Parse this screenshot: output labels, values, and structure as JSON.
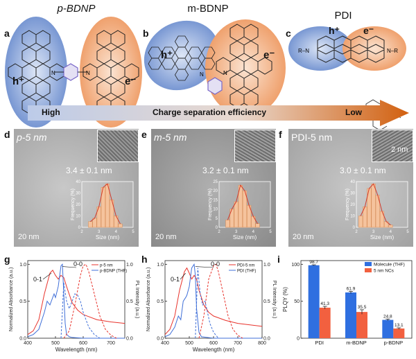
{
  "top": {
    "titles": {
      "a": "p-BDNP",
      "b": "m-BDNP",
      "c": "PDI"
    },
    "labels": {
      "a": "a",
      "b": "b",
      "c": "c"
    },
    "hole": "h⁺",
    "electron": "e⁻",
    "arrow": {
      "left": "High",
      "middle": "Charge separation efficiency",
      "right": "Low"
    },
    "r_group": "R="
  },
  "tem": [
    {
      "label": "d",
      "name": "p-5 nm",
      "size": "3.4 ± 0.1 nm",
      "scale": "20 nm",
      "hist": {
        "xlabel": "Size (nm)",
        "ylabel": "Frequency (%)",
        "xticks": [
          "2",
          "3",
          "4",
          "5"
        ],
        "yticks": [
          "0",
          "10",
          "20",
          "30",
          "40"
        ],
        "bins": [
          2.5,
          2.75,
          3.0,
          3.25,
          3.5,
          3.75,
          4.0,
          4.25
        ],
        "values": [
          5,
          8,
          18,
          35,
          38,
          24,
          10,
          3
        ],
        "xlim": [
          2,
          5
        ],
        "ylim": [
          0,
          40
        ]
      }
    },
    {
      "label": "e",
      "name": "m-5 nm",
      "size": "3.2 ± 0.1 nm",
      "scale": "20 nm",
      "hist": {
        "xlabel": "Size (nm)",
        "ylabel": "Frequency (%)",
        "xticks": [
          "2",
          "3",
          "4",
          "5"
        ],
        "yticks": [
          "0",
          "5",
          "10",
          "15",
          "20",
          "25"
        ],
        "bins": [
          2.5,
          2.75,
          3.0,
          3.25,
          3.5,
          3.75,
          4.0,
          4.25
        ],
        "values": [
          4,
          10,
          14,
          23,
          20,
          12,
          6,
          2
        ],
        "xlim": [
          2,
          5
        ],
        "ylim": [
          0,
          25
        ]
      }
    },
    {
      "label": "f",
      "name": "PDI-5 nm",
      "size": "3.0 ± 0.1 nm",
      "scale": "20 nm",
      "inset_scale": "2 nm",
      "hist": {
        "xlabel": "Size (nm)",
        "ylabel": "Frequency (%)",
        "xticks": [
          "2",
          "3",
          "4",
          "5"
        ],
        "yticks": [
          "0",
          "10",
          "20",
          "30",
          "40"
        ],
        "bins": [
          2.25,
          2.5,
          2.75,
          3.0,
          3.25,
          3.5,
          3.75,
          4.0
        ],
        "values": [
          10,
          18,
          34,
          38,
          28,
          14,
          5,
          2
        ],
        "xlim": [
          2,
          5
        ],
        "ylim": [
          0,
          40
        ]
      }
    }
  ],
  "chart_data": [
    {
      "type": "line",
      "label": "g",
      "xlabel": "Wavelength (nm)",
      "ylabel": "Normalized Absorbance (a.u.)",
      "ylabel_right": "PL Intensity (a.u.)",
      "xlim": [
        400,
        750
      ],
      "ylim": [
        0,
        1.05
      ],
      "xticks": [
        "400",
        "500",
        "600",
        "700"
      ],
      "yticks": [
        "0.0",
        "0.5",
        "1.0"
      ],
      "annotations": [
        "0-1",
        "0-0"
      ],
      "legend": [
        "p-5 nm",
        "p-BDNP (THF)"
      ],
      "series": [
        {
          "name": "p-5 nm",
          "color": "#e8322b",
          "style": "solid",
          "x": [
            400,
            420,
            440,
            460,
            480,
            490,
            500,
            510,
            520,
            530,
            540,
            560,
            580,
            600,
            650,
            700,
            750
          ],
          "y": [
            0.05,
            0.1,
            0.25,
            0.6,
            0.88,
            0.92,
            0.85,
            0.8,
            0.85,
            0.82,
            0.7,
            0.48,
            0.38,
            0.32,
            0.25,
            0.22,
            0.2
          ]
        },
        {
          "name": "p-BDNP (THF)",
          "color": "#3f6fd8",
          "style": "solid",
          "x": [
            400,
            420,
            440,
            460,
            470,
            480,
            490,
            495,
            500,
            510,
            520,
            525,
            530,
            535,
            540,
            550,
            560,
            600,
            700,
            750
          ],
          "y": [
            0.02,
            0.05,
            0.12,
            0.35,
            0.5,
            0.45,
            0.55,
            0.6,
            0.55,
            0.7,
            0.98,
            1.0,
            0.6,
            0.2,
            0.05,
            0.02,
            0.01,
            0.0,
            0.0,
            0.0
          ]
        },
        {
          "name": "p-5 nm PL",
          "color": "#e8322b",
          "style": "dashed",
          "x": [
            530,
            550,
            570,
            590,
            600,
            610,
            620,
            640,
            660,
            680,
            700,
            720
          ],
          "y": [
            0.0,
            0.1,
            0.45,
            0.85,
            0.98,
            1.0,
            0.9,
            0.6,
            0.3,
            0.12,
            0.04,
            0.0
          ]
        },
        {
          "name": "p-BDNP (THF) PL",
          "color": "#3f6fd8",
          "style": "dashed",
          "x": [
            520,
            530,
            540,
            550,
            560,
            570,
            580,
            590,
            600,
            620,
            640,
            660
          ],
          "y": [
            0.0,
            0.75,
            0.5,
            0.4,
            0.5,
            0.6,
            0.58,
            0.5,
            0.35,
            0.15,
            0.05,
            0.0
          ]
        }
      ]
    },
    {
      "type": "line",
      "label": "h",
      "xlabel": "Wavelength (nm)",
      "ylabel": "Normalized Absorbance (a.u.)",
      "ylabel_right": "PL Intensity (a.u.)",
      "xlim": [
        400,
        800
      ],
      "ylim": [
        0,
        1.05
      ],
      "xticks": [
        "400",
        "500",
        "600",
        "700",
        "800"
      ],
      "yticks": [
        "0.0",
        "0.5",
        "1.0"
      ],
      "annotations": [
        "0-1",
        "0-0"
      ],
      "legend": [
        "PDI-5 nm",
        "PDI (THF)"
      ],
      "series": [
        {
          "name": "PDI-5 nm",
          "color": "#e8322b",
          "style": "solid",
          "x": [
            400,
            420,
            440,
            460,
            480,
            490,
            500,
            510,
            520,
            530,
            540,
            560,
            580,
            600,
            650,
            700,
            750,
            800
          ],
          "y": [
            0.05,
            0.12,
            0.3,
            0.65,
            0.9,
            0.95,
            0.88,
            0.8,
            0.85,
            0.8,
            0.65,
            0.45,
            0.35,
            0.3,
            0.24,
            0.2,
            0.18,
            0.16
          ]
        },
        {
          "name": "PDI (THF)",
          "color": "#3f6fd8",
          "style": "solid",
          "x": [
            400,
            420,
            440,
            455,
            465,
            475,
            485,
            490,
            500,
            510,
            520,
            525,
            530,
            540,
            550,
            600,
            700,
            800
          ],
          "y": [
            0.02,
            0.05,
            0.15,
            0.3,
            0.25,
            0.5,
            0.55,
            0.58,
            0.7,
            0.95,
            1.0,
            0.85,
            0.4,
            0.08,
            0.02,
            0.0,
            0.0,
            0.0
          ]
        },
        {
          "name": "PDI-5 nm PL",
          "color": "#e8322b",
          "style": "dashed",
          "x": [
            540,
            560,
            580,
            600,
            610,
            620,
            640,
            660,
            680,
            700,
            720
          ],
          "y": [
            0.0,
            0.3,
            0.8,
            0.98,
            1.0,
            0.9,
            0.6,
            0.3,
            0.12,
            0.04,
            0.0
          ]
        },
        {
          "name": "PDI (THF) PL",
          "color": "#3f6fd8",
          "style": "dashed",
          "x": [
            525,
            535,
            545,
            555,
            565,
            575,
            585,
            600,
            620
          ],
          "y": [
            0.0,
            0.95,
            0.6,
            0.45,
            0.5,
            0.35,
            0.2,
            0.08,
            0.0
          ]
        }
      ]
    },
    {
      "type": "bar",
      "label": "i",
      "ylabel": "PLQY (%)",
      "ylim": [
        0,
        105
      ],
      "yticks": [
        "0",
        "50",
        "100"
      ],
      "categories": [
        "PDI",
        "m-BDNP",
        "p-BDNP"
      ],
      "legend_position": "top-right",
      "series": [
        {
          "name": "Molecule (THF)",
          "color": "#2f6fe0",
          "values": [
            98.7,
            61.9,
            24.8
          ],
          "errors": [
            0.6,
            1.5,
            1.2
          ]
        },
        {
          "name": "5 nm NCs",
          "color": "#f2603f",
          "values": [
            41.3,
            35.5,
            13.1
          ],
          "errors": [
            1.8,
            3.0,
            1.0
          ]
        }
      ],
      "value_labels": [
        [
          "98.7",
          "41.3"
        ],
        [
          "61.9",
          "35.5"
        ],
        [
          "24.8",
          "13.1"
        ]
      ]
    }
  ]
}
